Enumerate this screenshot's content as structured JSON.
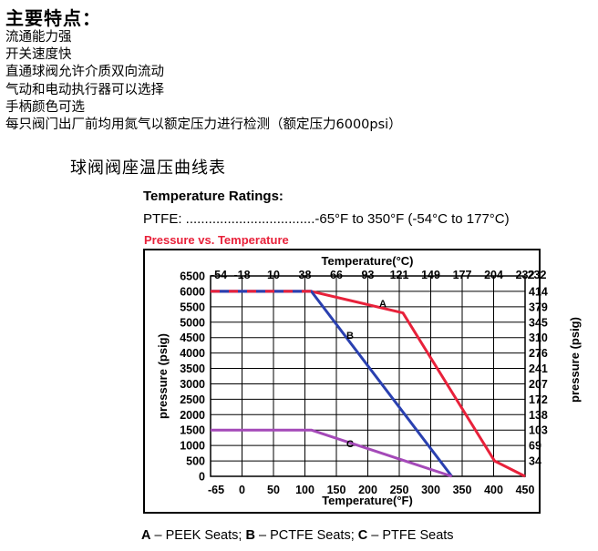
{
  "heading": "主要特点：",
  "features": [
    "流通能力强",
    "开关速度快",
    "直通球阀允许介质双向流动",
    "气动和电动执行器可以选择",
    "手柄颜色可选",
    "每只阀门出厂前均用氮气以额定压力进行检测（额定压力6000psi）"
  ],
  "section_title": "球阀阀座温压曲线表",
  "ratings": {
    "title": "Temperature Ratings:",
    "ptfe_line": "PTFE: ..................................-65°F to 350°F (-54°C to 177°C)"
  },
  "legend_note": {
    "a_key": "A",
    "a_text": " – PEEK Seats; ",
    "b_key": "B",
    "b_text": " – PCTFE Seats; ",
    "c_key": "C",
    "c_text": " – PTFE Seats"
  },
  "colors": {
    "title_red": "#e8213a",
    "series_a": "#e8213a",
    "series_b": "#2a40b0",
    "series_c": "#a449b8",
    "grid": "#000000"
  },
  "chart_data": {
    "type": "line",
    "title": "Pressure vs. Temperature",
    "xlabel": "Temperature(°F)",
    "x2label": "Temperature(°C)",
    "ylabel": "pressure (psig)",
    "y2label": "pressure (psig)",
    "xlim": [
      -65,
      450
    ],
    "ylim": [
      0,
      6500
    ],
    "x_ticks": [
      "-65",
      "0",
      "50",
      "100",
      "150",
      "200",
      "250",
      "300",
      "350",
      "400",
      "450"
    ],
    "x2_ticks": [
      "-54",
      "-18",
      "10",
      "38",
      "66",
      "93",
      "121",
      "149",
      "177",
      "204",
      "232"
    ],
    "y_ticks": [
      "0",
      "500",
      "1000",
      "1500",
      "2000",
      "2500",
      "3000",
      "3500",
      "4000",
      "4500",
      "5000",
      "5500",
      "6000",
      "6500"
    ],
    "y2_ticks": [
      "",
      "34",
      "69",
      "103",
      "138",
      "172",
      "207",
      "241",
      "276",
      "310",
      "345",
      "379",
      "414",
      ""
    ],
    "grid": true,
    "series": [
      {
        "name": "A",
        "points": [
          [
            -65,
            6000
          ],
          [
            100,
            6000
          ],
          [
            250,
            5300
          ],
          [
            400,
            500
          ],
          [
            450,
            0
          ]
        ]
      },
      {
        "name": "B",
        "points": [
          [
            -65,
            6000
          ],
          [
            100,
            6000
          ],
          [
            330,
            0
          ]
        ]
      },
      {
        "name": "C",
        "points": [
          [
            -65,
            1500
          ],
          [
            100,
            1500
          ],
          [
            330,
            0
          ]
        ]
      }
    ],
    "shared_segment": {
      "from": [
        -65,
        6000
      ],
      "to": [
        100,
        6000
      ],
      "style": "dashed-red-blue"
    }
  }
}
